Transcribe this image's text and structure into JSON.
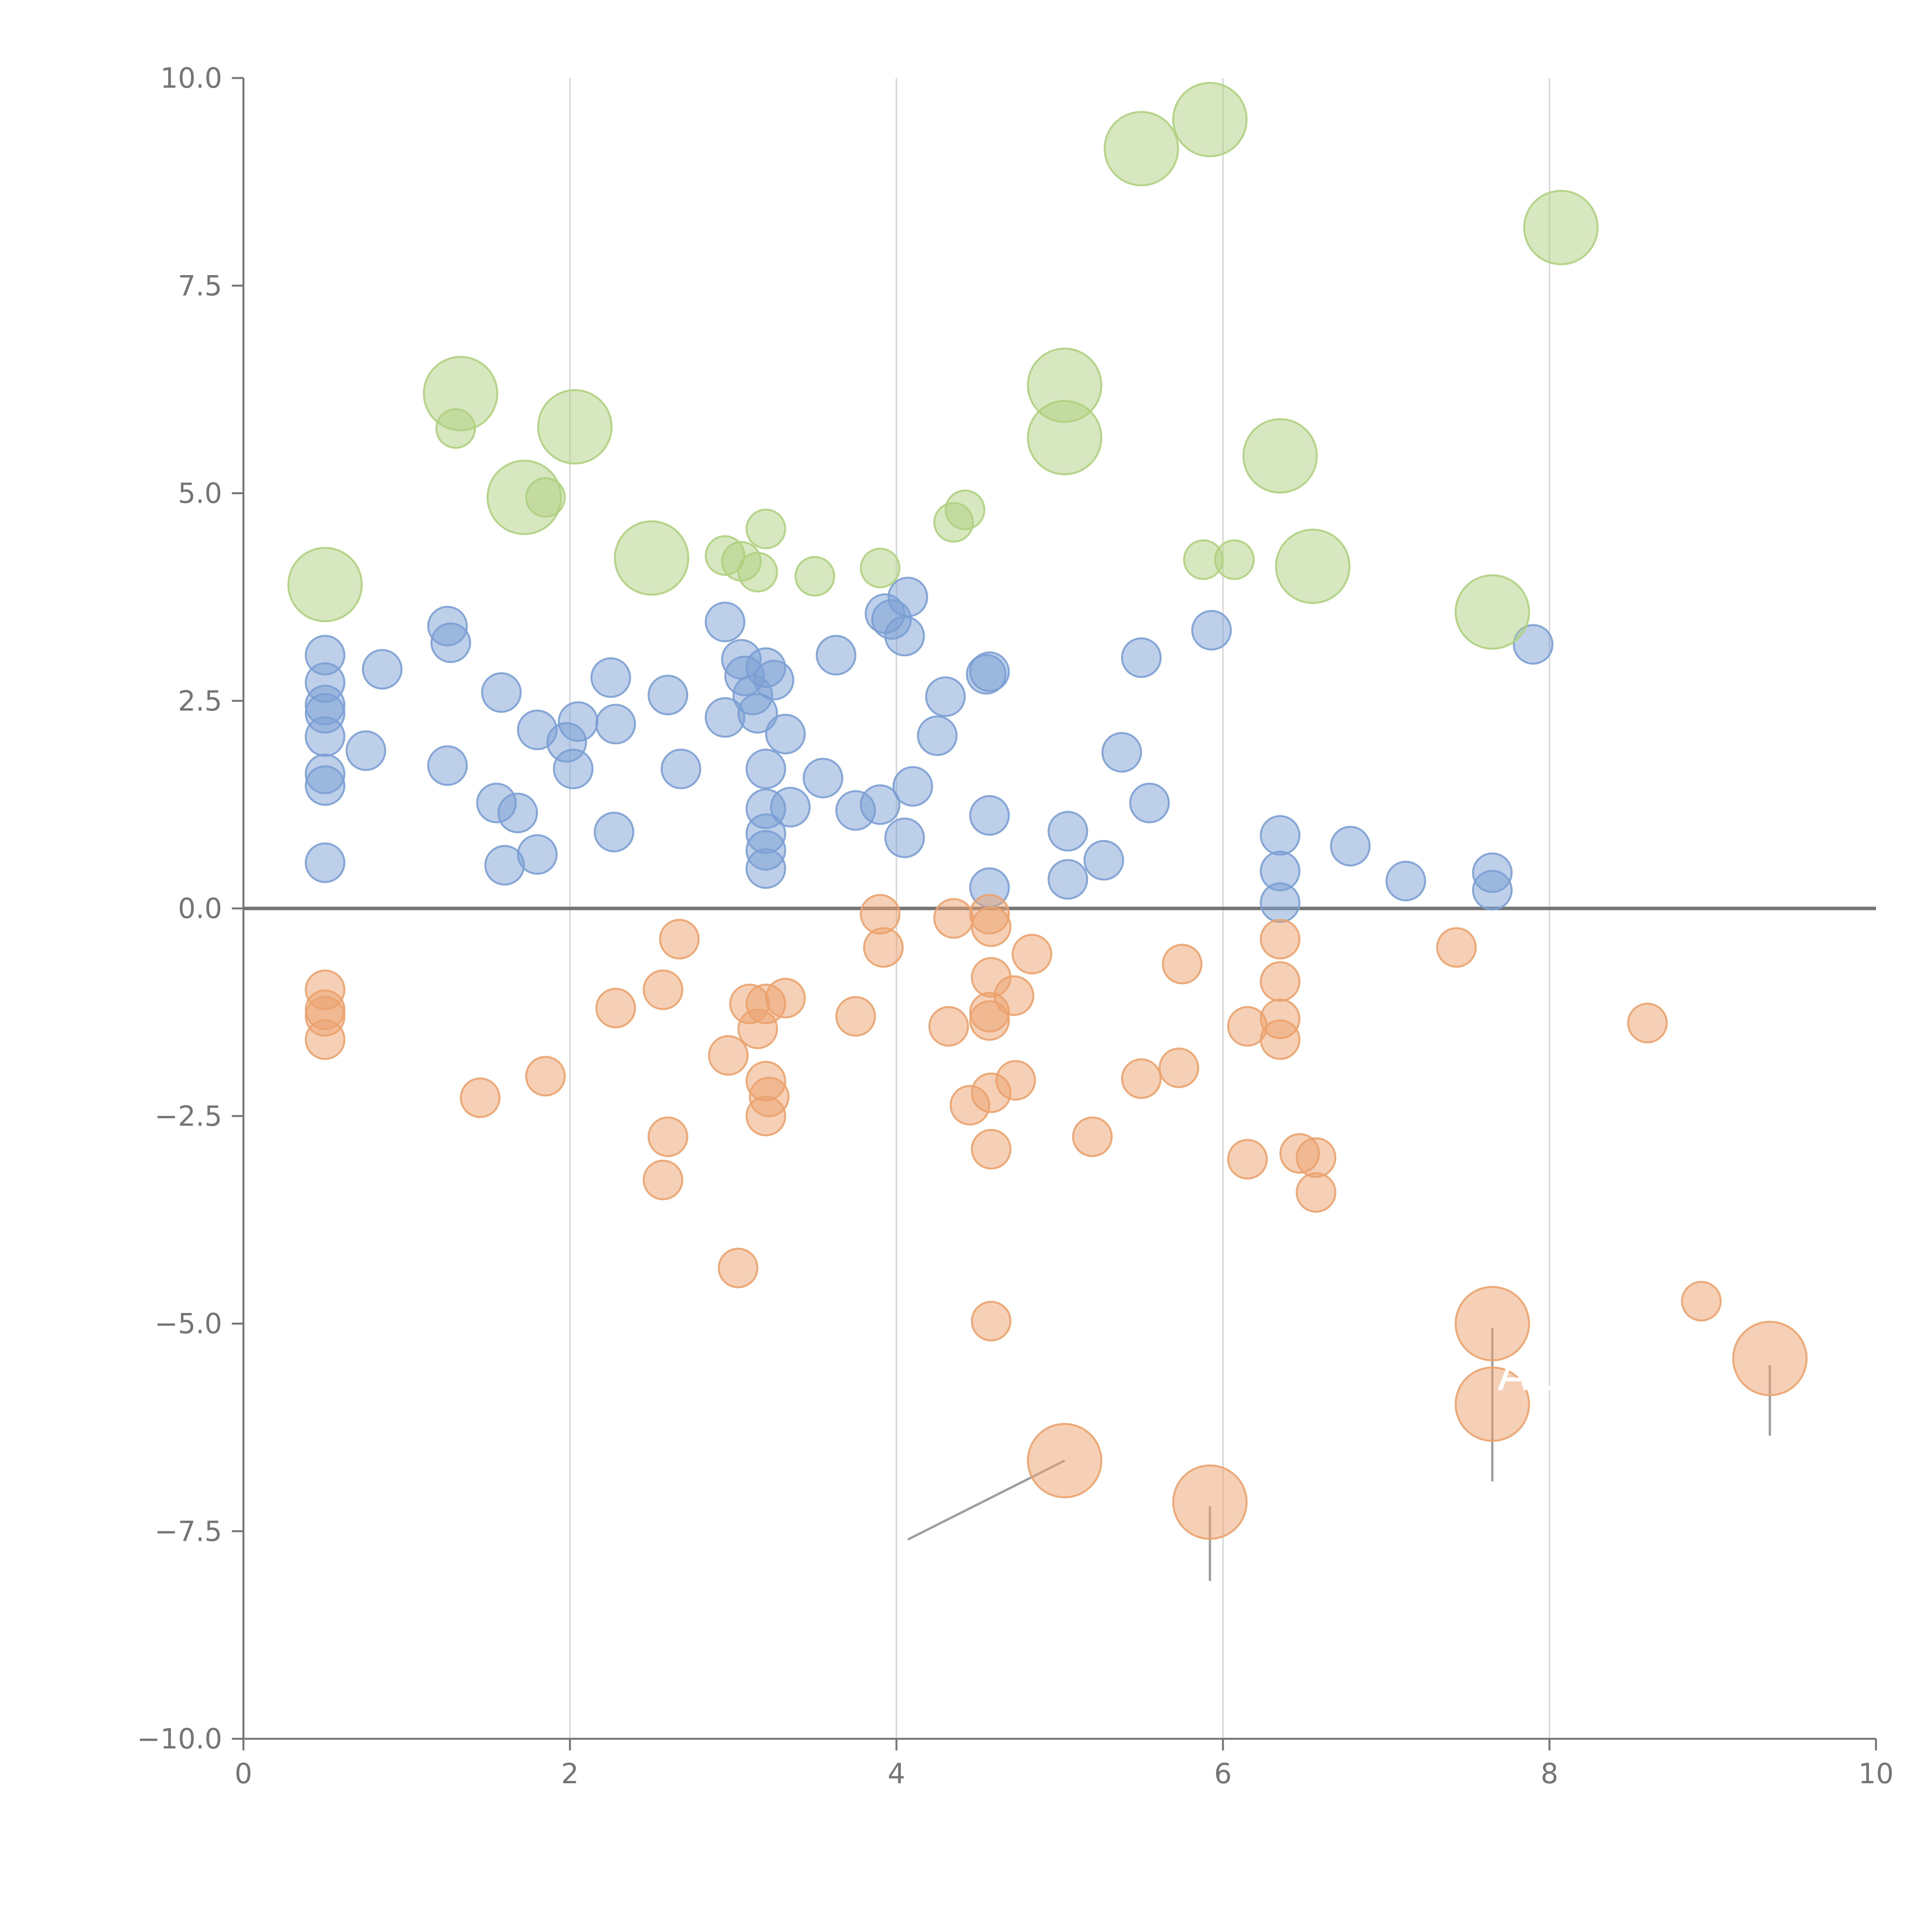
{
  "chart_data": {
    "type": "scatter",
    "title": "",
    "xlabel": "",
    "ylabel": "",
    "xlim": [
      0,
      10
    ],
    "ylim": [
      -10,
      10
    ],
    "x_ticks": [
      0,
      2,
      4,
      6,
      8,
      10
    ],
    "x_tick_labels": [
      "0",
      "2",
      "4",
      "6",
      "8",
      "10"
    ],
    "y_ticks": [
      10,
      7.5,
      5,
      2.5,
      0,
      -2.5,
      -5,
      -7.5,
      -10
    ],
    "y_tick_labels": [
      "10.0",
      "7.5",
      "5.0",
      "2.5",
      "0.0",
      "−2.5",
      "−5.0",
      "−7.5",
      "−10.0"
    ],
    "grid": "vertical",
    "zero_line": 0,
    "colors": {
      "blue": "#7b9fd4",
      "orange": "#eba26d",
      "green": "#afd07f",
      "axis": "#757575",
      "grid": "#d9d9d9",
      "leader": "#9e9e9e"
    },
    "series": [
      {
        "name": "blue",
        "color": "#7b9fd4",
        "points": [
          [
            0.5,
            3.05
          ],
          [
            0.5,
            2.72
          ],
          [
            0.5,
            2.45
          ],
          [
            0.5,
            2.35
          ],
          [
            0.5,
            2.07
          ],
          [
            0.5,
            1.62
          ],
          [
            0.5,
            1.48
          ],
          [
            0.5,
            0.55
          ],
          [
            0.85,
            2.88
          ],
          [
            0.75,
            1.9
          ],
          [
            1.25,
            3.4
          ],
          [
            1.27,
            3.2
          ],
          [
            1.25,
            1.72
          ],
          [
            1.58,
            2.6
          ],
          [
            1.55,
            1.27
          ],
          [
            1.68,
            1.15
          ],
          [
            1.6,
            0.52
          ],
          [
            1.8,
            0.65
          ],
          [
            1.8,
            2.15
          ],
          [
            1.98,
            2.0
          ],
          [
            2.05,
            2.25
          ],
          [
            2.02,
            1.68
          ],
          [
            2.28,
            2.22
          ],
          [
            2.25,
            2.78
          ],
          [
            2.27,
            0.92
          ],
          [
            2.6,
            2.57
          ],
          [
            2.68,
            1.68
          ],
          [
            2.95,
            3.45
          ],
          [
            2.95,
            2.3
          ],
          [
            3.05,
            3.0
          ],
          [
            3.07,
            2.8
          ],
          [
            3.12,
            2.57
          ],
          [
            3.15,
            2.35
          ],
          [
            3.2,
            2.9
          ],
          [
            3.25,
            2.75
          ],
          [
            3.2,
            1.68
          ],
          [
            3.2,
            1.2
          ],
          [
            3.2,
            0.9
          ],
          [
            3.2,
            0.7
          ],
          [
            3.2,
            0.48
          ],
          [
            3.32,
            2.1
          ],
          [
            3.35,
            1.22
          ],
          [
            3.55,
            1.57
          ],
          [
            3.63,
            3.05
          ],
          [
            3.75,
            1.18
          ],
          [
            3.9,
            1.25
          ],
          [
            3.93,
            3.55
          ],
          [
            3.97,
            3.48
          ],
          [
            4.05,
            3.28
          ],
          [
            4.07,
            3.75
          ],
          [
            4.05,
            0.85
          ],
          [
            4.1,
            1.47
          ],
          [
            4.25,
            2.08
          ],
          [
            4.3,
            2.55
          ],
          [
            4.55,
            2.82
          ],
          [
            4.57,
            2.85
          ],
          [
            4.57,
            1.12
          ],
          [
            4.57,
            0.25
          ],
          [
            5.05,
            0.93
          ],
          [
            5.05,
            0.35
          ],
          [
            5.27,
            0.58
          ],
          [
            5.38,
            1.88
          ],
          [
            5.5,
            3.02
          ],
          [
            5.55,
            1.27
          ],
          [
            5.93,
            3.35
          ],
          [
            6.35,
            0.88
          ],
          [
            6.35,
            0.45
          ],
          [
            6.35,
            0.07
          ],
          [
            6.78,
            0.75
          ],
          [
            7.12,
            0.33
          ],
          [
            7.65,
            0.43
          ],
          [
            7.65,
            0.22
          ],
          [
            7.9,
            3.18
          ]
        ]
      },
      {
        "name": "orange",
        "color": "#eba26d",
        "points": [
          [
            0.5,
            -0.98
          ],
          [
            0.5,
            -1.22
          ],
          [
            0.5,
            -1.3
          ],
          [
            0.5,
            -1.58
          ],
          [
            1.45,
            -2.28
          ],
          [
            1.85,
            -2.02
          ],
          [
            2.28,
            -1.2
          ],
          [
            2.57,
            -0.98
          ],
          [
            2.67,
            -0.37
          ],
          [
            2.6,
            -2.75
          ],
          [
            2.57,
            -3.27
          ],
          [
            2.97,
            -1.77
          ],
          [
            3.03,
            -4.33
          ],
          [
            3.1,
            -1.15
          ],
          [
            3.15,
            -1.45
          ],
          [
            3.2,
            -1.15
          ],
          [
            3.32,
            -1.08
          ],
          [
            3.2,
            -2.08
          ],
          [
            3.22,
            -2.27
          ],
          [
            3.2,
            -2.5
          ],
          [
            3.75,
            -1.3
          ],
          [
            3.9,
            -0.07
          ],
          [
            3.92,
            -0.47
          ],
          [
            4.35,
            -0.12
          ],
          [
            4.32,
            -1.42
          ],
          [
            4.45,
            -2.37
          ],
          [
            4.57,
            -0.07
          ],
          [
            4.58,
            -0.22
          ],
          [
            4.58,
            -0.83
          ],
          [
            4.57,
            -1.25
          ],
          [
            4.57,
            -1.35
          ],
          [
            4.72,
            -1.05
          ],
          [
            4.58,
            -2.22
          ],
          [
            4.73,
            -2.07
          ],
          [
            4.58,
            -2.9
          ],
          [
            4.58,
            -4.97
          ],
          [
            4.83,
            -0.55
          ],
          [
            5.2,
            -2.75
          ],
          [
            5.5,
            -2.05
          ],
          [
            5.73,
            -1.92
          ],
          [
            5.75,
            -0.67
          ],
          [
            6.15,
            -1.42
          ],
          [
            6.15,
            -3.02
          ],
          [
            6.35,
            -0.37
          ],
          [
            6.35,
            -0.88
          ],
          [
            6.35,
            -1.33
          ],
          [
            6.35,
            -1.58
          ],
          [
            6.47,
            -2.95
          ],
          [
            6.57,
            -3.0
          ],
          [
            6.57,
            -3.42
          ],
          [
            7.43,
            -0.47
          ],
          [
            8.6,
            -1.38
          ],
          [
            8.93,
            -4.73
          ]
        ]
      },
      {
        "name": "green",
        "color": "#afd07f",
        "points": [
          [
            1.3,
            5.78
          ],
          [
            1.85,
            4.95
          ],
          [
            2.95,
            4.25
          ],
          [
            3.05,
            4.18
          ],
          [
            3.15,
            4.05
          ],
          [
            3.2,
            4.57
          ],
          [
            3.5,
            4.0
          ],
          [
            3.9,
            4.1
          ],
          [
            4.35,
            4.65
          ],
          [
            4.42,
            4.8
          ],
          [
            5.88,
            4.2
          ],
          [
            6.07,
            4.2
          ]
        ]
      },
      {
        "name": "green-large",
        "color": "#afd07f",
        "points": [
          [
            0.5,
            3.9
          ],
          [
            1.33,
            6.2
          ],
          [
            1.72,
            4.95
          ],
          [
            2.03,
            5.8
          ],
          [
            2.5,
            4.22
          ],
          [
            5.03,
            6.3
          ],
          [
            5.03,
            5.67
          ],
          [
            5.5,
            9.15
          ],
          [
            5.92,
            9.5
          ],
          [
            6.35,
            5.45
          ],
          [
            6.55,
            4.12
          ],
          [
            7.65,
            3.57
          ],
          [
            8.07,
            8.2
          ]
        ]
      },
      {
        "name": "orange-large",
        "color": "#eba26d",
        "points": [
          [
            5.03,
            -6.65
          ],
          [
            5.92,
            -7.15
          ],
          [
            7.65,
            -5.0
          ],
          [
            7.65,
            -5.97
          ],
          [
            9.35,
            -5.42
          ]
        ]
      }
    ],
    "annotations": [
      {
        "text": "AU",
        "x": 7.68,
        "y": -5.8
      }
    ]
  }
}
